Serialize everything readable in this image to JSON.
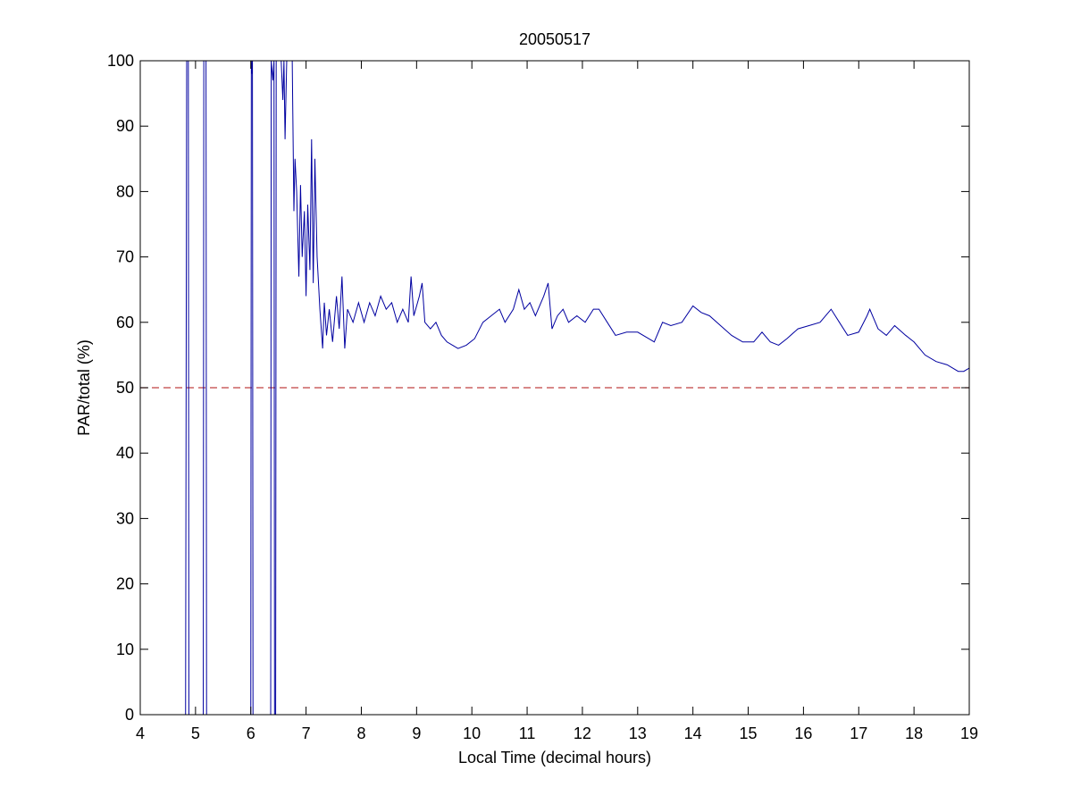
{
  "chart_data": {
    "type": "line",
    "title": "20050517",
    "x_label": "Local Time (decimal hours)",
    "y_label": "PAR/total (%)",
    "x": [
      4.82,
      4.84,
      4.87,
      4.88,
      5.14,
      5.15,
      5.19,
      5.2,
      6.0,
      6.01,
      6.02,
      6.03,
      6.04,
      6.36,
      6.37,
      6.4,
      6.42,
      6.43,
      6.45,
      6.46,
      6.55,
      6.58,
      6.6,
      6.62,
      6.65,
      6.75,
      6.78,
      6.8,
      6.83,
      6.87,
      6.9,
      6.93,
      6.97,
      7.0,
      7.03,
      7.07,
      7.1,
      7.13,
      7.16,
      7.2,
      7.25,
      7.3,
      7.33,
      7.37,
      7.42,
      7.48,
      7.55,
      7.6,
      7.65,
      7.7,
      7.75,
      7.85,
      7.95,
      8.05,
      8.15,
      8.25,
      8.35,
      8.45,
      8.55,
      8.65,
      8.75,
      8.85,
      8.9,
      8.95,
      9.05,
      9.1,
      9.15,
      9.25,
      9.35,
      9.45,
      9.55,
      9.65,
      9.75,
      9.9,
      10.05,
      10.2,
      10.35,
      10.5,
      10.6,
      10.75,
      10.85,
      10.95,
      11.05,
      11.15,
      11.3,
      11.38,
      11.45,
      11.55,
      11.65,
      11.75,
      11.9,
      12.05,
      12.2,
      12.3,
      12.45,
      12.6,
      12.8,
      13.0,
      13.2,
      13.3,
      13.45,
      13.6,
      13.8,
      14.0,
      14.15,
      14.3,
      14.5,
      14.7,
      14.9,
      15.1,
      15.25,
      15.4,
      15.55,
      15.7,
      15.9,
      16.1,
      16.3,
      16.5,
      16.65,
      16.8,
      17.0,
      17.15,
      17.2,
      17.35,
      17.5,
      17.65,
      17.85,
      18.0,
      18.2,
      18.4,
      18.6,
      18.8,
      18.9,
      19.0
    ],
    "series": [
      {
        "color": "#0000a0",
        "values": [
          0,
          100,
          100,
          0,
          0,
          100,
          100,
          0,
          0,
          100,
          98,
          100,
          0,
          0,
          100,
          97,
          100,
          0,
          0,
          100,
          100,
          94,
          100,
          88,
          100,
          100,
          77,
          85,
          80,
          67,
          81,
          70,
          77,
          64,
          78,
          68,
          88,
          66,
          85,
          70,
          62,
          56,
          63,
          58,
          62,
          57,
          64,
          59,
          67,
          56,
          62,
          60,
          63,
          60,
          63,
          61,
          64,
          62,
          63,
          60,
          62,
          60,
          67,
          61,
          64,
          66,
          60,
          59,
          60,
          58,
          57,
          56.5,
          56,
          56.5,
          57.5,
          60,
          61,
          62,
          60,
          62,
          65,
          62,
          63,
          61,
          64,
          66,
          59,
          61,
          62,
          60,
          61,
          60,
          62,
          62,
          60,
          58,
          58.5,
          58.5,
          57.5,
          57,
          60,
          59.5,
          60,
          62.5,
          61.5,
          61,
          59.5,
          58,
          57,
          57,
          58.5,
          57,
          56.5,
          57.5,
          59,
          59.5,
          60,
          62,
          60,
          58,
          58.5,
          61,
          62,
          59,
          58,
          59.5,
          58,
          57,
          55,
          54,
          53.5,
          52.5,
          52.5,
          53
        ]
      }
    ],
    "reference_lines": [
      {
        "y": 50,
        "color": "#c04040"
      }
    ],
    "xlim": [
      4,
      19
    ],
    "xticks": [
      4,
      5,
      6,
      7,
      8,
      9,
      10,
      11,
      12,
      13,
      14,
      15,
      16,
      17,
      18,
      19
    ],
    "ylim": [
      0,
      100
    ],
    "yticks": [
      0,
      10,
      20,
      30,
      40,
      50,
      60,
      70,
      80,
      90,
      100
    ]
  }
}
